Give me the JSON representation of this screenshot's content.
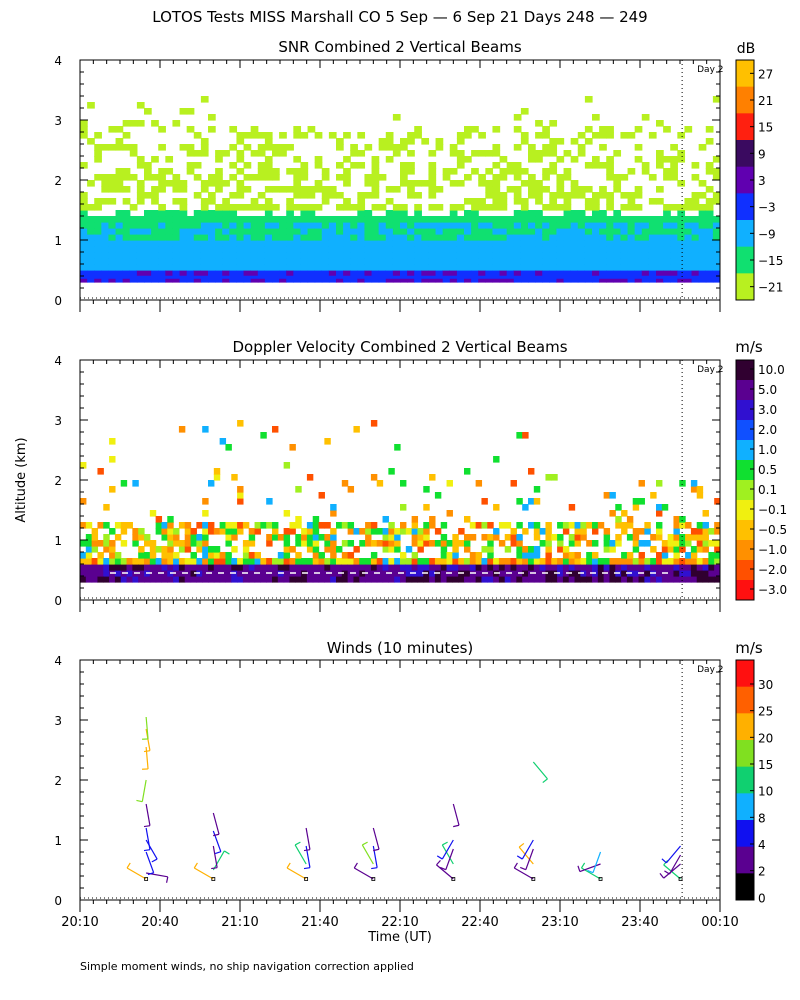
{
  "title": "LOTOS Tests MISS Marshall CO   5 Sep —  6 Sep 21 Days 248 — 249",
  "y_axis_label": "Altitude (km)",
  "x_axis_label": "Time (UT)",
  "footnote": "Simple moment winds, no ship navigation correction applied",
  "day_marker_label": "Day 2",
  "x_tick_labels": [
    "20:10",
    "20:40",
    "21:10",
    "21:40",
    "22:10",
    "22:40",
    "23:10",
    "23:40",
    "00:10"
  ],
  "y_tick_labels": [
    "0",
    "1",
    "2",
    "3",
    "4"
  ],
  "chart_data": [
    {
      "type": "heatmap",
      "title": "SNR Combined 2 Vertical Beams",
      "units": "dB",
      "xlabel": "",
      "ylabel": "Altitude (km)",
      "xlim_hours": [
        20.1667,
        24.1667
      ],
      "ylim": [
        0,
        4
      ],
      "day_marker_hour": 23.93,
      "colorbar": {
        "labels": [
          "27",
          "21",
          "15",
          "9",
          "3",
          "−3",
          "−9",
          "−15",
          "−21"
        ],
        "colors": [
          "#ffc000",
          "#ff8000",
          "#ff2010",
          "#3a0a60",
          "#6000b0",
          "#1030ff",
          "#10b0ff",
          "#10e070",
          "#b8f020"
        ]
      },
      "layers": [
        {
          "bin": "−21",
          "top_km": 2.9,
          "note": "scattered returns up to about 3 km"
        },
        {
          "bin": "−15",
          "top_km": 1.3
        },
        {
          "bin": "−9",
          "top_km": 1.0
        },
        {
          "bin": "−3",
          "top_km": 0.5
        }
      ]
    },
    {
      "type": "heatmap",
      "title": "Doppler Velocity Combined 2 Vertical Beams",
      "units": "m/s",
      "xlabel": "",
      "ylabel": "Altitude (km)",
      "xlim_hours": [
        20.1667,
        24.1667
      ],
      "ylim": [
        0,
        4
      ],
      "day_marker_hour": 23.93,
      "colorbar": {
        "labels": [
          "10.0",
          "5.0",
          "3.0",
          "2.0",
          "1.0",
          "0.5",
          "0.1",
          "−0.1",
          "−0.5",
          "−1.0",
          "−2.0",
          "−3.0"
        ],
        "colors": [
          "#300030",
          "#5a0090",
          "#3010d0",
          "#1050ff",
          "#10b0ff",
          "#10e030",
          "#a0f020",
          "#f0f010",
          "#ffc000",
          "#ff9000",
          "#ff5000",
          "#ff1010"
        ]
      }
    },
    {
      "type": "scatter",
      "title": "Winds (10 minutes)",
      "units": "m/s",
      "xlabel": "Time (UT)",
      "ylabel": "Altitude (km)",
      "xlim_hours": [
        20.1667,
        24.1667
      ],
      "ylim": [
        0,
        4
      ],
      "day_marker_hour": 23.93,
      "colorbar": {
        "labels": [
          "30",
          "25",
          "20",
          "15",
          "10",
          "8",
          "4",
          "2",
          "0"
        ],
        "colors": [
          "#ff1010",
          "#ff6000",
          "#ffb000",
          "#80e020",
          "#10d070",
          "#10b0ff",
          "#1010f0",
          "#5a0090",
          "#000000"
        ]
      },
      "profiles": [
        {
          "time_hour": 20.58,
          "barbs": [
            {
              "alt_km": 0.35,
              "speed_ms": 20,
              "dir_deg": 300
            },
            {
              "alt_km": 0.45,
              "speed_ms": 3,
              "dir_deg": 100
            },
            {
              "alt_km": 0.8,
              "speed_ms": 4,
              "dir_deg": 160
            },
            {
              "alt_km": 1.0,
              "speed_ms": 6,
              "dir_deg": 150
            },
            {
              "alt_km": 1.2,
              "speed_ms": 4,
              "dir_deg": 170
            },
            {
              "alt_km": 1.6,
              "speed_ms": 3,
              "dir_deg": 170
            },
            {
              "alt_km": 2.0,
              "speed_ms": 18,
              "dir_deg": 190
            },
            {
              "alt_km": 2.55,
              "speed_ms": 20,
              "dir_deg": 175
            },
            {
              "alt_km": 2.85,
              "speed_ms": 22,
              "dir_deg": 170
            },
            {
              "alt_km": 3.05,
              "speed_ms": 15,
              "dir_deg": 175
            }
          ]
        },
        {
          "time_hour": 21.0,
          "barbs": [
            {
              "alt_km": 0.35,
              "speed_ms": 20,
              "dir_deg": 300
            },
            {
              "alt_km": 0.5,
              "speed_ms": 14,
              "dir_deg": 30
            },
            {
              "alt_km": 0.9,
              "speed_ms": 3,
              "dir_deg": 170
            },
            {
              "alt_km": 1.15,
              "speed_ms": 4,
              "dir_deg": 160
            },
            {
              "alt_km": 1.45,
              "speed_ms": 3,
              "dir_deg": 165
            }
          ]
        },
        {
          "time_hour": 21.58,
          "barbs": [
            {
              "alt_km": 0.35,
              "speed_ms": 20,
              "dir_deg": 300
            },
            {
              "alt_km": 0.6,
              "speed_ms": 12,
              "dir_deg": 330
            },
            {
              "alt_km": 0.9,
              "speed_ms": 4,
              "dir_deg": 170
            },
            {
              "alt_km": 1.2,
              "speed_ms": 3,
              "dir_deg": 170
            }
          ]
        },
        {
          "time_hour": 22.0,
          "barbs": [
            {
              "alt_km": 0.35,
              "speed_ms": 3,
              "dir_deg": 300
            },
            {
              "alt_km": 0.6,
              "speed_ms": 16,
              "dir_deg": 330
            },
            {
              "alt_km": 0.9,
              "speed_ms": 4,
              "dir_deg": 170
            },
            {
              "alt_km": 1.2,
              "speed_ms": 3,
              "dir_deg": 165
            }
          ]
        },
        {
          "time_hour": 22.5,
          "barbs": [
            {
              "alt_km": 0.35,
              "speed_ms": 3,
              "dir_deg": 310
            },
            {
              "alt_km": 0.6,
              "speed_ms": 14,
              "dir_deg": 330
            },
            {
              "alt_km": 0.85,
              "speed_ms": 3,
              "dir_deg": 200
            },
            {
              "alt_km": 1.0,
              "speed_ms": 4,
              "dir_deg": 210
            },
            {
              "alt_km": 1.6,
              "speed_ms": 3,
              "dir_deg": 165
            }
          ]
        },
        {
          "time_hour": 23.0,
          "barbs": [
            {
              "alt_km": 0.35,
              "speed_ms": 3,
              "dir_deg": 300
            },
            {
              "alt_km": 0.6,
              "speed_ms": 20,
              "dir_deg": 320
            },
            {
              "alt_km": 0.85,
              "speed_ms": 3,
              "dir_deg": 200
            },
            {
              "alt_km": 1.0,
              "speed_ms": 4,
              "dir_deg": 210
            },
            {
              "alt_km": 2.3,
              "speed_ms": 14,
              "dir_deg": 140
            }
          ]
        },
        {
          "time_hour": 23.42,
          "barbs": [
            {
              "alt_km": 0.35,
              "speed_ms": 12,
              "dir_deg": 300
            },
            {
              "alt_km": 0.6,
              "speed_ms": 3,
              "dir_deg": 250
            },
            {
              "alt_km": 0.8,
              "speed_ms": 8,
              "dir_deg": 200
            }
          ]
        },
        {
          "time_hour": 23.92,
          "barbs": [
            {
              "alt_km": 0.35,
              "speed_ms": 12,
              "dir_deg": 310
            },
            {
              "alt_km": 0.6,
              "speed_ms": 3,
              "dir_deg": 230
            },
            {
              "alt_km": 0.75,
              "speed_ms": 3,
              "dir_deg": 210
            },
            {
              "alt_km": 0.9,
              "speed_ms": 4,
              "dir_deg": 220
            }
          ]
        }
      ]
    }
  ]
}
